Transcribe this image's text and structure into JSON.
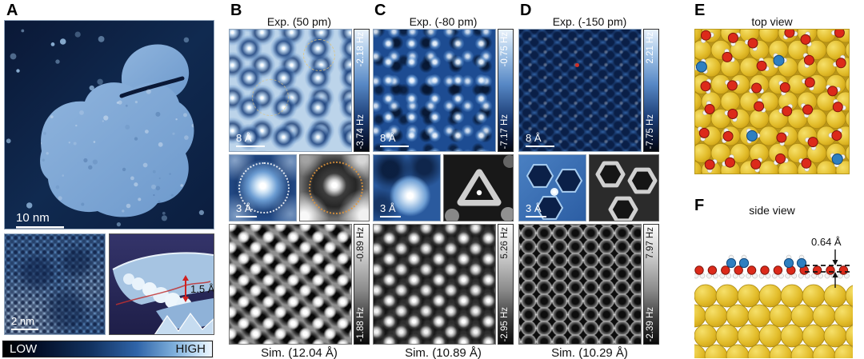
{
  "panel_a": {
    "label": "A",
    "scalebar_main": "10 nm",
    "scalebar_zoom": "2 nm",
    "height_annotation": "1.5 Å",
    "colorbar_low": "LOW",
    "colorbar_high": "HIGH"
  },
  "panel_b": {
    "label": "B",
    "exp_title": "Exp.  (50 pm)",
    "exp_scalebar": "8 Å",
    "exp_colorbar_top": "-2.18 Hz",
    "exp_colorbar_bottom": "-3.74 Hz",
    "zoom_scalebar": "3 Å",
    "sim_colorbar_top": "-0.89 Hz",
    "sim_colorbar_bottom": "-1.88 Hz",
    "sim_caption": "Sim.  (12.04 Å)"
  },
  "panel_c": {
    "label": "C",
    "exp_title": "Exp. (-80 pm)",
    "exp_scalebar": "8 Å",
    "exp_colorbar_top": "-0.75 Hz",
    "exp_colorbar_bottom": "-7.17 Hz",
    "zoom_scalebar": "3 Å",
    "sim_colorbar_top": "5.26 Hz",
    "sim_colorbar_bottom": "-2.95 Hz",
    "sim_caption": "Sim.  (10.89 Å)"
  },
  "panel_d": {
    "label": "D",
    "exp_title": "Exp. (-150 pm)",
    "exp_scalebar": "8 Å",
    "exp_colorbar_top": "2.21 Hz",
    "exp_colorbar_bottom": "-7.75 Hz",
    "zoom_scalebar": "3 Å",
    "sim_colorbar_top": "7.97 Hz",
    "sim_colorbar_bottom": "-2.39 Hz",
    "sim_caption": "Sim.  (10.29 Å)"
  },
  "panel_e": {
    "label": "E",
    "title": "top view"
  },
  "panel_f": {
    "label": "F",
    "title": "side view",
    "height_annotation": "0.64 Å"
  },
  "colors": {
    "gold": "#e2bc2a",
    "gold_light": "#f6e06a",
    "gold_dark": "#c89a10",
    "oxygen": "#dc2a1a",
    "nitrogen": "#2e7fc0",
    "hydrogen": "#f2f2f2",
    "accent_red": "#d03028",
    "stm_island": "#7ca6d6",
    "stm_background": "#0c1d3d"
  }
}
